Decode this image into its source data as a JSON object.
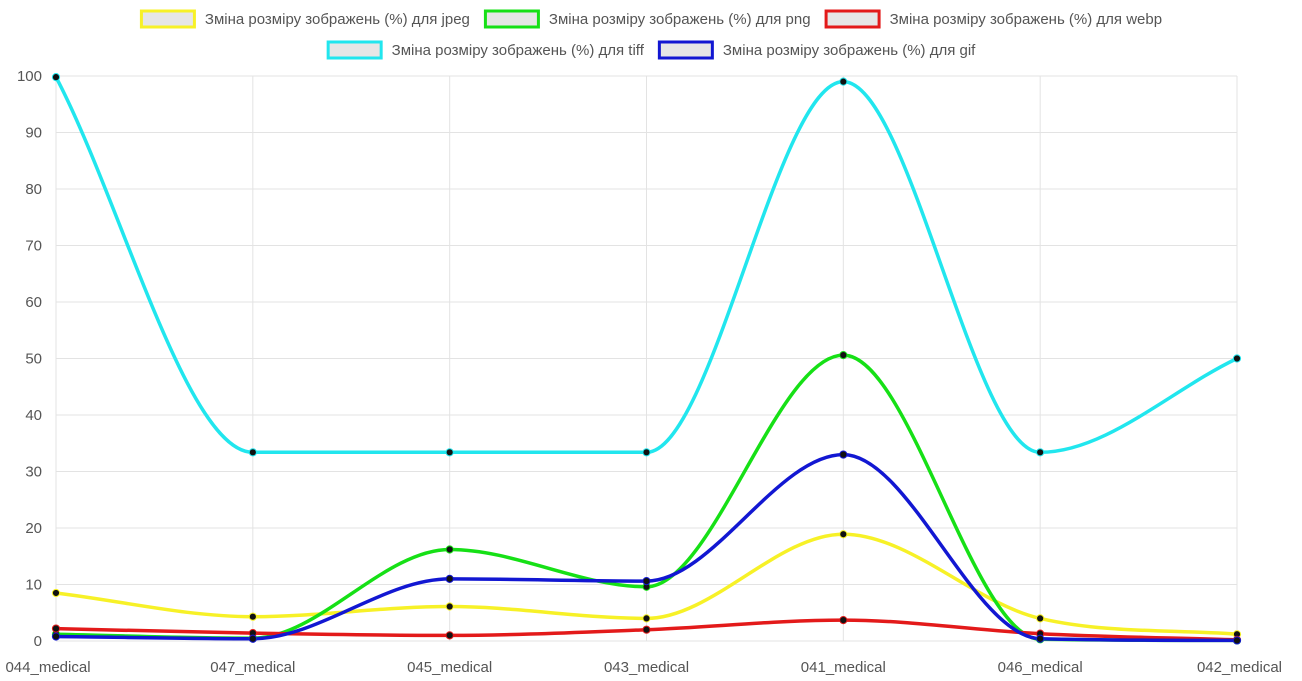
{
  "chart_data": {
    "type": "line",
    "categories": [
      "044_medical",
      "047_medical",
      "045_medical",
      "043_medical",
      "041_medical",
      "046_medical",
      "042_medical"
    ],
    "ylim": [
      0,
      100
    ],
    "yticks": [
      0,
      10,
      20,
      30,
      40,
      50,
      60,
      70,
      80,
      90,
      100
    ],
    "grid": true,
    "legend_position": "top-center",
    "smooth": true,
    "series": [
      {
        "name": "Зміна розміру зображень (%) для jpeg",
        "color": "#f7f127",
        "values": [
          8.5,
          4.3,
          6.1,
          4.0,
          18.9,
          4.0,
          1.2
        ]
      },
      {
        "name": "Зміна розміру зображень (%) для png",
        "color": "#16e016",
        "values": [
          1.2,
          0.5,
          16.2,
          9.6,
          50.6,
          0.3,
          0.1
        ]
      },
      {
        "name": "Зміна розміру зображень (%) для webp",
        "color": "#e31a1a",
        "values": [
          2.2,
          1.4,
          1.0,
          2.0,
          3.7,
          1.3,
          0.2
        ]
      },
      {
        "name": "Зміна розміру зображень (%) для tiff",
        "color": "#21e6ee",
        "values": [
          99.8,
          33.4,
          33.4,
          33.4,
          99.0,
          33.4,
          50.0
        ]
      },
      {
        "name": "Зміна розміру зображень (%) для gif",
        "color": "#1217d2",
        "values": [
          0.8,
          0.4,
          11.0,
          10.6,
          33.0,
          0.4,
          0.1
        ]
      }
    ]
  }
}
